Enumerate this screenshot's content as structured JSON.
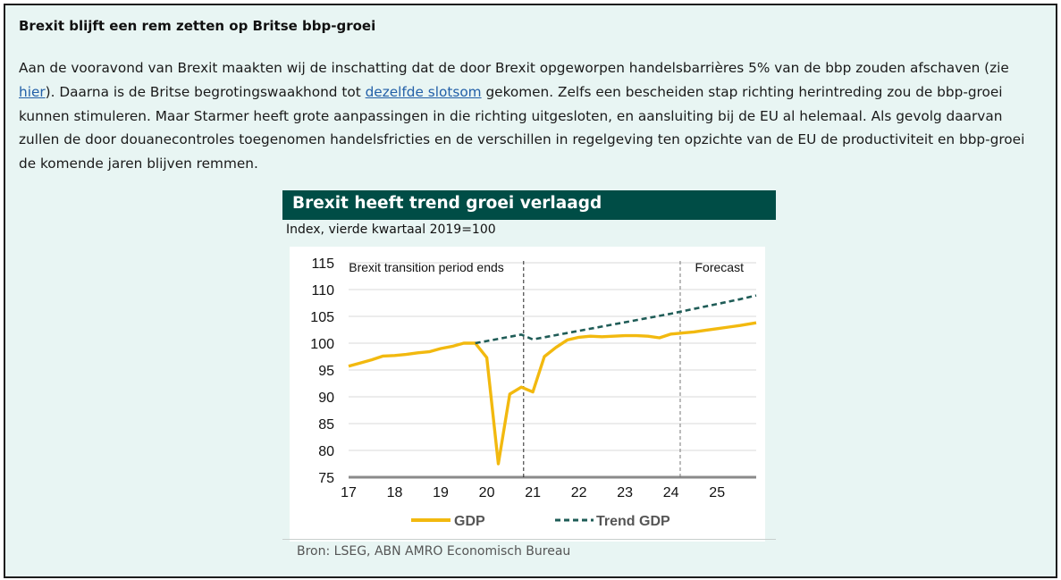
{
  "heading": "Brexit blijft een rem zetten op Britse bbp-groei",
  "paragraph": {
    "t1": "Aan de vooravond van Brexit maakten wij de inschatting dat de door Brexit opgeworpen handelsbarrières 5% van de bbp zouden afschaven (zie ",
    "link1": "hier",
    "t2": "). Daarna is de Britse begrotingswaakhond tot ",
    "link2": "dezelfde slotsom",
    "t3": " gekomen. Zelfs een bescheiden stap richting herintreding zou de bbp-groei kunnen stimuleren. Maar Starmer heeft grote aanpassingen in die richting uitgesloten, en aansluiting bij de EU al helemaal. Als gevolg daarvan zullen de door douanecontroles toegenomen handelsfricties en de verschillen in regelgeving ten opzichte van de EU de productiviteit en bbp-groei de komende jaren blijven remmen."
  },
  "chart": {
    "title": "Brexit heeft trend groei verlaagd",
    "subtitle": "Index, vierde kwartaal 2019=100",
    "source": "Bron: LSEG, ABN AMRO Economisch Bureau"
  },
  "colors": {
    "header_bg": "#004d46",
    "gdp": "#f2b90f",
    "trend": "#1f5c57",
    "page_bg": "#e8f5f3"
  },
  "chart_data": {
    "type": "line",
    "title": "Brexit heeft trend groei verlaagd",
    "ylabel": "Index, vierde kwartaal 2019=100",
    "xlabel": "",
    "ylim": [
      75,
      115
    ],
    "yticks": [
      75,
      80,
      85,
      90,
      95,
      100,
      105,
      110,
      115
    ],
    "xlim": [
      17,
      25.85
    ],
    "xticks": [
      17,
      18,
      19,
      20,
      21,
      22,
      23,
      24,
      25
    ],
    "xtick_labels": [
      "17",
      "18",
      "19",
      "20",
      "21",
      "22",
      "23",
      "24",
      "25"
    ],
    "legend": [
      "GDP",
      "Trend GDP"
    ],
    "legend_position": "bottom",
    "annotations": [
      {
        "text": "Brexit transition period ends",
        "x": 20.8
      },
      {
        "text": "Forecast",
        "x": 24.2
      }
    ],
    "series": [
      {
        "name": "GDP",
        "style": "solid",
        "points": [
          [
            17.0,
            95.7
          ],
          [
            17.25,
            96.3
          ],
          [
            17.5,
            96.9
          ],
          [
            17.75,
            97.6
          ],
          [
            18.0,
            97.7
          ],
          [
            18.25,
            97.9
          ],
          [
            18.5,
            98.2
          ],
          [
            18.75,
            98.4
          ],
          [
            19.0,
            99.0
          ],
          [
            19.25,
            99.4
          ],
          [
            19.5,
            100.0
          ],
          [
            19.75,
            100.0
          ],
          [
            20.0,
            97.3
          ],
          [
            20.25,
            77.5
          ],
          [
            20.5,
            90.5
          ],
          [
            20.75,
            91.8
          ],
          [
            21.0,
            90.9
          ],
          [
            21.25,
            97.5
          ],
          [
            21.5,
            99.2
          ],
          [
            21.75,
            100.6
          ],
          [
            22.0,
            101.1
          ],
          [
            22.25,
            101.3
          ],
          [
            22.5,
            101.2
          ],
          [
            22.75,
            101.3
          ],
          [
            23.0,
            101.4
          ],
          [
            23.25,
            101.4
          ],
          [
            23.5,
            101.3
          ],
          [
            23.75,
            101.0
          ],
          [
            24.0,
            101.7
          ],
          [
            24.25,
            101.9
          ],
          [
            24.5,
            102.1
          ],
          [
            24.75,
            102.4
          ],
          [
            25.0,
            102.7
          ],
          [
            25.25,
            103.0
          ],
          [
            25.5,
            103.3
          ],
          [
            25.85,
            103.8
          ]
        ]
      },
      {
        "name": "Trend GDP",
        "style": "dashed",
        "points": [
          [
            19.75,
            100.0
          ],
          [
            20.0,
            100.4
          ],
          [
            20.25,
            100.8
          ],
          [
            20.5,
            101.2
          ],
          [
            20.75,
            101.6
          ],
          [
            21.0,
            100.7
          ],
          [
            21.5,
            101.5
          ],
          [
            22.0,
            102.3
          ],
          [
            22.5,
            103.1
          ],
          [
            23.0,
            103.9
          ],
          [
            23.5,
            104.7
          ],
          [
            24.0,
            105.5
          ],
          [
            24.5,
            106.4
          ],
          [
            25.0,
            107.3
          ],
          [
            25.5,
            108.2
          ],
          [
            25.85,
            108.9
          ]
        ]
      }
    ]
  }
}
